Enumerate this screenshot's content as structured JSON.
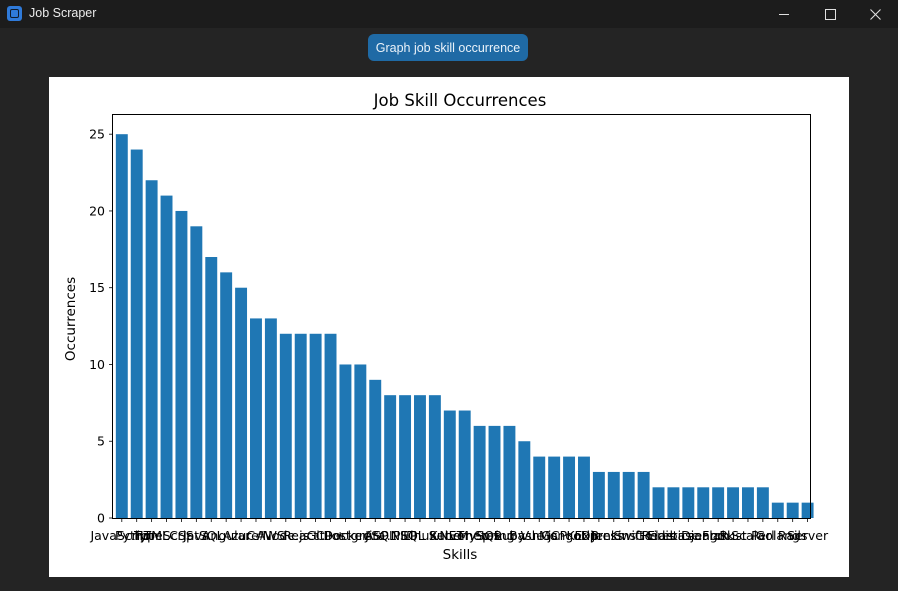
{
  "window": {
    "title": "Job Scraper",
    "icon": "app-icon",
    "controls": [
      "minimize-icon",
      "maximize-icon",
      "close-icon"
    ]
  },
  "toolbar": {
    "graph_button_label": "Graph job skill occurrence",
    "accent": "#1f6aa5"
  },
  "chart_data": {
    "type": "bar",
    "title": "Job Skill Occurrences",
    "xlabel": "Skills",
    "ylabel": "Occurrences",
    "ylim": [
      0,
      26.25
    ],
    "yticks": [
      0,
      5,
      10,
      15,
      20,
      25
    ],
    "bar_color": "#1f77b4",
    "categories": [
      "JavaScript",
      "Python",
      "HTML",
      "TypeScript",
      "CSS",
      "Java",
      "SQL",
      "Angular",
      "Azure",
      "C#",
      "AWS",
      "Node.js",
      "React",
      "Git",
      "C++",
      "Docker",
      "PostgreSQL",
      "Jira",
      "ASP.NET",
      "PHP",
      "Linux",
      "SQL Server",
      ".NET",
      "Kubernetes",
      "MySQL",
      "Spring",
      "Ruby",
      "Bash",
      "Vue.js",
      "GCP",
      "MongoDB",
      "Kotlin",
      "Express",
      "Jenkins",
      "Swift",
      "Go",
      "Redis",
      "Firebase",
      "Elasticsearch",
      "Django",
      "Flask",
      "Rust",
      "Scala",
      "Perl",
      "Golang",
      "Rails",
      "Server"
    ],
    "values": [
      25,
      24,
      22,
      21,
      20,
      19,
      17,
      16,
      15,
      13,
      13,
      12,
      12,
      12,
      12,
      10,
      10,
      9,
      8,
      8,
      8,
      8,
      7,
      7,
      6,
      6,
      6,
      5,
      4,
      4,
      4,
      4,
      3,
      3,
      3,
      3,
      2,
      2,
      2,
      2,
      2,
      2,
      2,
      2,
      1,
      1,
      1
    ]
  }
}
